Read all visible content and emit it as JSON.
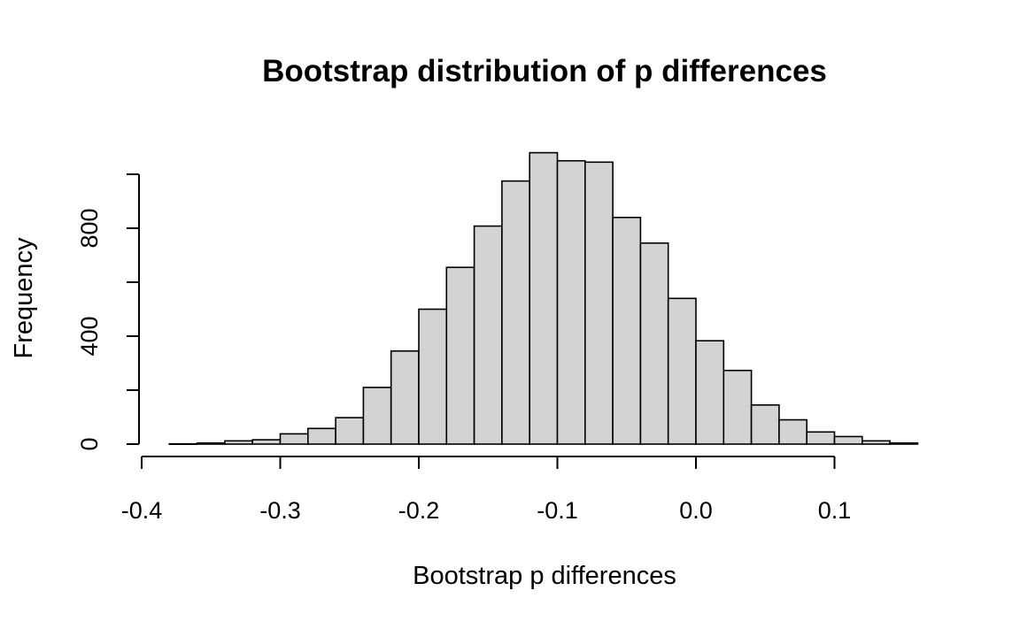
{
  "chart_data": {
    "type": "bar",
    "title": "Bootstrap distribution of p differences",
    "xlabel": "Bootstrap p differences",
    "ylabel": "Frequency",
    "bin_width": 0.02,
    "bins_start": [
      -0.38,
      -0.36,
      -0.34,
      -0.32,
      -0.3,
      -0.28,
      -0.26,
      -0.24,
      -0.22,
      -0.2,
      -0.18,
      -0.16,
      -0.14,
      -0.12,
      -0.1,
      -0.08,
      -0.06,
      -0.04,
      -0.02,
      0.0,
      0.02,
      0.04,
      0.06,
      0.08,
      0.1,
      0.12,
      0.14
    ],
    "values": [
      1,
      4,
      12,
      16,
      38,
      58,
      98,
      210,
      345,
      500,
      655,
      808,
      975,
      1080,
      1050,
      1045,
      840,
      745,
      540,
      383,
      273,
      145,
      90,
      45,
      28,
      12,
      4
    ],
    "xlim": [
      -0.4,
      0.16
    ],
    "ylim": [
      0,
      1000
    ],
    "x_ticks": [
      "-0.4",
      "-0.3",
      "-0.2",
      "-0.1",
      "0.0",
      "0.1"
    ],
    "y_ticks": [
      "0",
      "400",
      "800"
    ],
    "y_minor_ticks": [
      200,
      600,
      1000
    ],
    "grid": false,
    "bar_color": "#d3d3d3"
  }
}
